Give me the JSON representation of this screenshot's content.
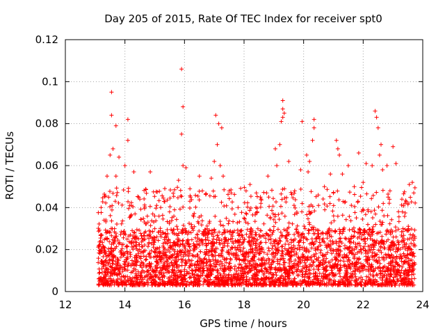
{
  "chart_data": {
    "type": "scatter",
    "title": "Day 205 of 2015, Rate Of TEC Index for receiver spt0",
    "xlabel": "GPS time / hours",
    "ylabel": "ROTI / TECUs",
    "xlim": [
      12,
      24
    ],
    "ylim": [
      0,
      0.12
    ],
    "xticks": [
      "12",
      "14",
      "16",
      "18",
      "20",
      "22",
      "24"
    ],
    "yticks": [
      "0",
      "0.02",
      "0.04",
      "0.06",
      "0.08",
      "0.1",
      "0.12"
    ],
    "grid": true,
    "marker": "+",
    "color": "#ff0000",
    "series": [
      {
        "name": "ROTI",
        "x_range": [
          13.1,
          23.75
        ],
        "typical_range": [
          0.003,
          0.03
        ],
        "points": [
          [
            13.55,
            0.095
          ],
          [
            13.55,
            0.084
          ],
          [
            13.7,
            0.079
          ],
          [
            14.1,
            0.082
          ],
          [
            14.1,
            0.072
          ],
          [
            13.6,
            0.068
          ],
          [
            13.5,
            0.065
          ],
          [
            13.8,
            0.064
          ],
          [
            14.0,
            0.06
          ],
          [
            13.4,
            0.055
          ],
          [
            13.7,
            0.055
          ],
          [
            14.3,
            0.057
          ],
          [
            14.85,
            0.057
          ],
          [
            15.9,
            0.106
          ],
          [
            15.95,
            0.088
          ],
          [
            15.9,
            0.075
          ],
          [
            15.95,
            0.06
          ],
          [
            16.05,
            0.059
          ],
          [
            15.8,
            0.053
          ],
          [
            16.5,
            0.055
          ],
          [
            17.05,
            0.084
          ],
          [
            17.15,
            0.08
          ],
          [
            17.25,
            0.078
          ],
          [
            17.1,
            0.07
          ],
          [
            17.0,
            0.062
          ],
          [
            17.2,
            0.06
          ],
          [
            17.3,
            0.055
          ],
          [
            16.9,
            0.054
          ],
          [
            18.2,
            0.051
          ],
          [
            18.55,
            0.045
          ],
          [
            18.8,
            0.055
          ],
          [
            19.05,
            0.068
          ],
          [
            19.3,
            0.091
          ],
          [
            19.3,
            0.087
          ],
          [
            19.35,
            0.085
          ],
          [
            19.3,
            0.083
          ],
          [
            19.25,
            0.081
          ],
          [
            19.2,
            0.07
          ],
          [
            19.1,
            0.06
          ],
          [
            19.5,
            0.062
          ],
          [
            19.9,
            0.058
          ],
          [
            19.95,
            0.081
          ],
          [
            20.1,
            0.065
          ],
          [
            20.2,
            0.062
          ],
          [
            20.15,
            0.057
          ],
          [
            20.35,
            0.082
          ],
          [
            20.35,
            0.078
          ],
          [
            20.3,
            0.072
          ],
          [
            20.7,
            0.05
          ],
          [
            20.9,
            0.056
          ],
          [
            21.1,
            0.072
          ],
          [
            21.15,
            0.068
          ],
          [
            21.2,
            0.065
          ],
          [
            21.3,
            0.056
          ],
          [
            21.5,
            0.06
          ],
          [
            21.85,
            0.066
          ],
          [
            22.1,
            0.061
          ],
          [
            22.3,
            0.06
          ],
          [
            22.4,
            0.086
          ],
          [
            22.45,
            0.083
          ],
          [
            22.5,
            0.078
          ],
          [
            22.6,
            0.07
          ],
          [
            22.55,
            0.065
          ],
          [
            22.8,
            0.06
          ],
          [
            22.65,
            0.058
          ],
          [
            23.0,
            0.069
          ],
          [
            23.1,
            0.061
          ],
          [
            23.55,
            0.051
          ],
          [
            23.65,
            0.052
          ],
          [
            23.7,
            0.047
          ],
          [
            23.3,
            0.044
          ],
          [
            23.4,
            0.042
          ],
          [
            13.2,
            0.04
          ],
          [
            13.3,
            0.034
          ],
          [
            14.5,
            0.044
          ],
          [
            15.0,
            0.036
          ],
          [
            15.2,
            0.04
          ],
          [
            15.5,
            0.038
          ],
          [
            16.2,
            0.045
          ],
          [
            16.6,
            0.048
          ],
          [
            17.5,
            0.048
          ],
          [
            17.8,
            0.04
          ],
          [
            18.0,
            0.035
          ],
          [
            18.4,
            0.04
          ],
          [
            19.7,
            0.048
          ],
          [
            20.5,
            0.041
          ],
          [
            21.0,
            0.047
          ],
          [
            21.7,
            0.05
          ],
          [
            22.0,
            0.052
          ],
          [
            22.9,
            0.048
          ]
        ]
      }
    ]
  }
}
